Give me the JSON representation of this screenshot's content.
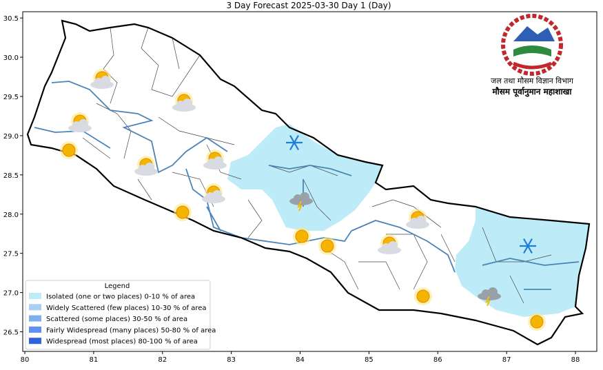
{
  "title": "3 Day Forecast 2025-03-30 Day 1 (Day)",
  "xlim": [
    79.97,
    88.31
  ],
  "ylim": [
    26.25,
    30.58
  ],
  "xticks": [
    80,
    81,
    82,
    83,
    84,
    85,
    86,
    87,
    88
  ],
  "yticks": [
    26.5,
    {
      "value": 27,
      "label": "27.0"
    },
    27.5,
    {
      "value": 28,
      "label": "28.0"
    },
    28.5,
    {
      "value": 29,
      "label": "29.0"
    },
    29.5,
    {
      "value": 30,
      "label": "30.0"
    },
    30.5
  ],
  "legend": {
    "title": "Legend",
    "items": [
      {
        "label": "Isolated (one or two places)  0-10 % of area",
        "color": "#bdebf8"
      },
      {
        "label": "Widely Scattered (few places) 10-30 % of area",
        "color": "#a8d0f2"
      },
      {
        "label": "Scattered (some places) 30-50  % of area",
        "color": "#7fb0ee"
      },
      {
        "label": "Fairly Widespread (many places) 50-80 % of area",
        "color": "#5e92ec"
      },
      {
        "label": "Widespread (most places) 80-100 % of area",
        "color": "#3062de"
      }
    ]
  },
  "logo": {
    "line1": "जल तथा मौसम विज्ञान विभाग",
    "line2": "मौसम पूर्वानुमान महाशाखा"
  }
}
